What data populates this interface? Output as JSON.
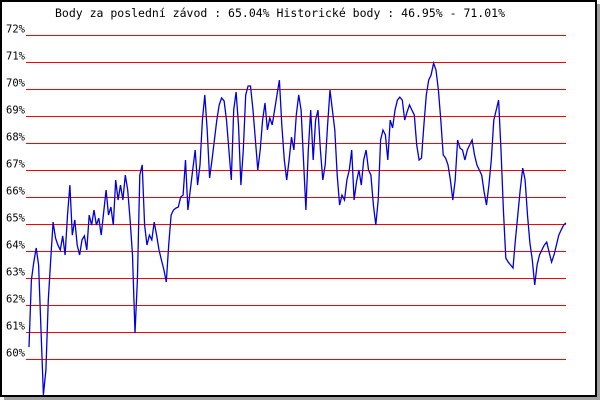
{
  "chart_data": {
    "type": "line",
    "title": "Body za poslední závod : 65.04%  Historické body : 46.95% - 71.01%",
    "xlabel": "",
    "ylabel": "",
    "ylim": [
      59,
      72
    ],
    "yticks": [
      "72%",
      "71%",
      "70%",
      "69%",
      "68%",
      "67%",
      "66%",
      "65%",
      "64%",
      "63%",
      "62%",
      "61%",
      "60%"
    ],
    "ytick_values": [
      72,
      71,
      70,
      69,
      68,
      67,
      66,
      65,
      64,
      63,
      62,
      61,
      60
    ],
    "grid": true,
    "grid_color": "#ff0000",
    "line_color": "#0000dd",
    "values": [
      60.44,
      62.93,
      63.59,
      64.11,
      63.48,
      61.07,
      58.67,
      59.59,
      62.19,
      63.67,
      65.07,
      64.48,
      64.22,
      64.04,
      64.56,
      63.85,
      65.33,
      66.44,
      64.59,
      65.15,
      64.22,
      63.85,
      64.41,
      64.56,
      64.04,
      65.33,
      64.96,
      65.52,
      64.96,
      65.22,
      64.59,
      65.44,
      66.26,
      65.33,
      65.63,
      64.96,
      66.63,
      65.89,
      66.44,
      65.89,
      66.81,
      66.26,
      65.15,
      63.85,
      60.96,
      62.93,
      66.81,
      67.19,
      64.96,
      64.22,
      64.59,
      64.41,
      65.07,
      64.59,
      64.04,
      63.67,
      63.3,
      62.85,
      64.22,
      65.33,
      65.52,
      65.59,
      65.63,
      66.0,
      66.07,
      67.37,
      65.52,
      66.26,
      67.0,
      67.74,
      66.44,
      67.19,
      68.85,
      69.78,
      68.48,
      66.7,
      67.37,
      68.11,
      68.85,
      69.41,
      69.67,
      69.56,
      68.85,
      67.74,
      66.63,
      69.22,
      69.89,
      68.67,
      66.44,
      67.74,
      69.78,
      70.11,
      70.11,
      69.22,
      68.11,
      67.0,
      67.74,
      68.85,
      69.48,
      68.48,
      68.93,
      68.67,
      69.22,
      69.78,
      70.33,
      68.67,
      67.37,
      66.63,
      67.37,
      68.22,
      67.74,
      69.04,
      69.78,
      69.22,
      67.37,
      65.52,
      67.74,
      69.22,
      67.37,
      68.85,
      69.22,
      67.74,
      66.63,
      67.19,
      68.67,
      69.96,
      69.22,
      68.48,
      66.81,
      65.7,
      66.07,
      65.89,
      66.63,
      67.0,
      67.74,
      65.89,
      66.56,
      67.0,
      66.44,
      67.37,
      67.74,
      67.0,
      66.81,
      65.7,
      64.96,
      65.89,
      68.11,
      68.48,
      68.3,
      67.37,
      68.85,
      68.56,
      69.22,
      69.59,
      69.7,
      69.59,
      68.85,
      69.15,
      69.41,
      69.22,
      69.04,
      67.93,
      67.37,
      67.44,
      68.67,
      69.78,
      70.33,
      70.52,
      70.96,
      70.7,
      69.96,
      68.85,
      67.56,
      67.44,
      67.19,
      66.63,
      65.89,
      66.63,
      68.11,
      67.81,
      67.74,
      67.37,
      67.74,
      67.93,
      68.11,
      67.56,
      67.19,
      67.0,
      66.81,
      66.19,
      65.7,
      66.44,
      67.37,
      68.85,
      69.22,
      69.59,
      67.74,
      65.52,
      63.74,
      63.59,
      63.48,
      63.37,
      64.41,
      65.33,
      66.26,
      67.07,
      66.63,
      65.33,
      64.3,
      63.67,
      62.74,
      63.48,
      63.85,
      64.04,
      64.22,
      64.33,
      63.96,
      63.59,
      63.85,
      64.22,
      64.59,
      64.78,
      64.96,
      65.04
    ]
  }
}
